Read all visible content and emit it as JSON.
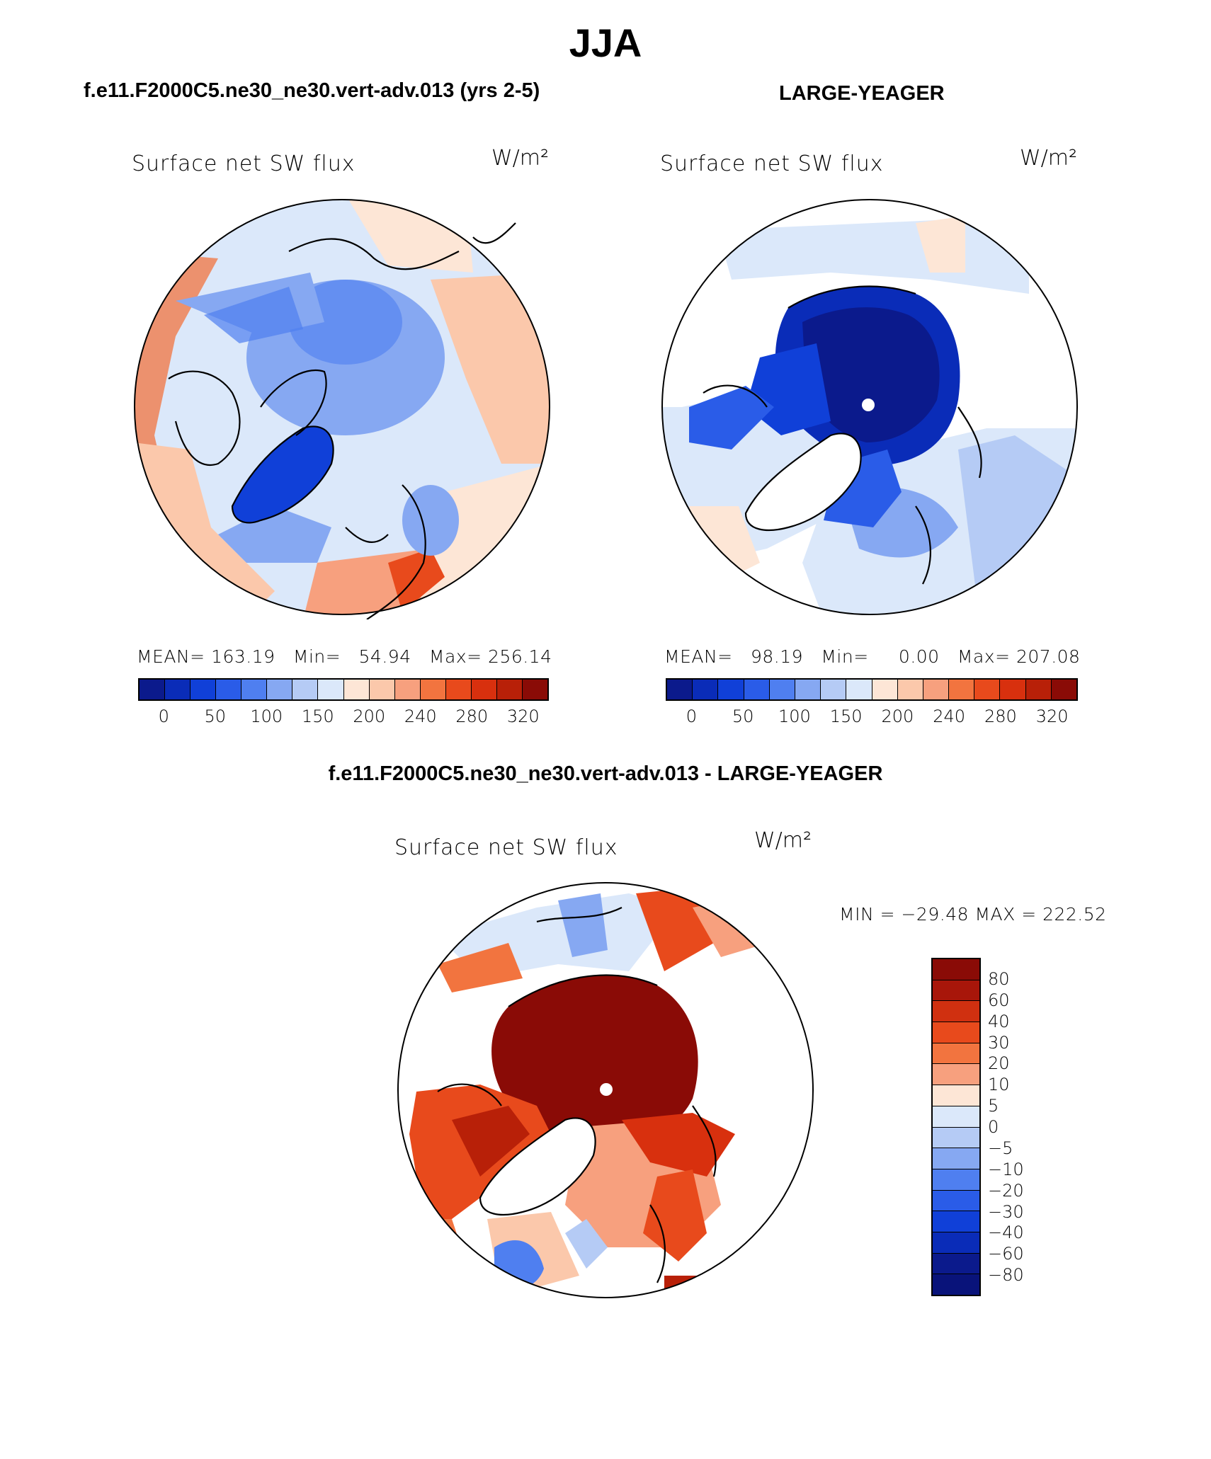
{
  "title": "JJA",
  "panels": [
    {
      "case_title": "f.e11.F2000C5.ne30_ne30.vert-adv.013 (yrs 2-5)",
      "variable": "Surface net SW flux",
      "units": "W/m²",
      "stats": "MEAN= 163.19   Min=   54.94   Max= 256.14",
      "colorbar_ticks": [
        "0",
        "50",
        "100",
        "150",
        "200",
        "240",
        "280",
        "320"
      ]
    },
    {
      "case_title": "LARGE-YEAGER",
      "variable": "Surface net SW flux",
      "units": "W/m²",
      "stats": "MEAN=   98.19   Min=     0.00   Max= 207.08",
      "colorbar_ticks": [
        "0",
        "50",
        "100",
        "150",
        "200",
        "240",
        "280",
        "320"
      ]
    }
  ],
  "difference": {
    "title": "f.e11.F2000C5.ne30_ne30.vert-adv.013 - LARGE-YEAGER",
    "variable": "Surface net SW flux",
    "units": "W/m²",
    "minmax": "MIN = −29.48 MAX = 222.52",
    "colorbar_labels": [
      "80",
      "60",
      "40",
      "30",
      "20",
      "10",
      "5",
      "0",
      "−5",
      "−10",
      "−20",
      "−30",
      "−40",
      "−60",
      "−80"
    ]
  },
  "colors": {
    "abs_palette": [
      "#0b1a8c",
      "#0a2cb8",
      "#1040d8",
      "#2a5ce8",
      "#4f7ff0",
      "#86a8f2",
      "#b5cbf5",
      "#dbe8fa",
      "#fde6d6",
      "#fbc8ab",
      "#f7a07e",
      "#f2743f",
      "#e84a1c",
      "#d8300e",
      "#b82008",
      "#8a0b06"
    ],
    "diff_palette": [
      "#8a0b06",
      "#a8160a",
      "#d03010",
      "#e84a1c",
      "#f2743f",
      "#f7a07e",
      "#fde6d6",
      "#dbe8fa",
      "#b5cbf5",
      "#86a8f2",
      "#4f7ff0",
      "#2a5ce8",
      "#1040d8",
      "#0a2cb8",
      "#0b1a8c",
      "#09137a"
    ]
  }
}
